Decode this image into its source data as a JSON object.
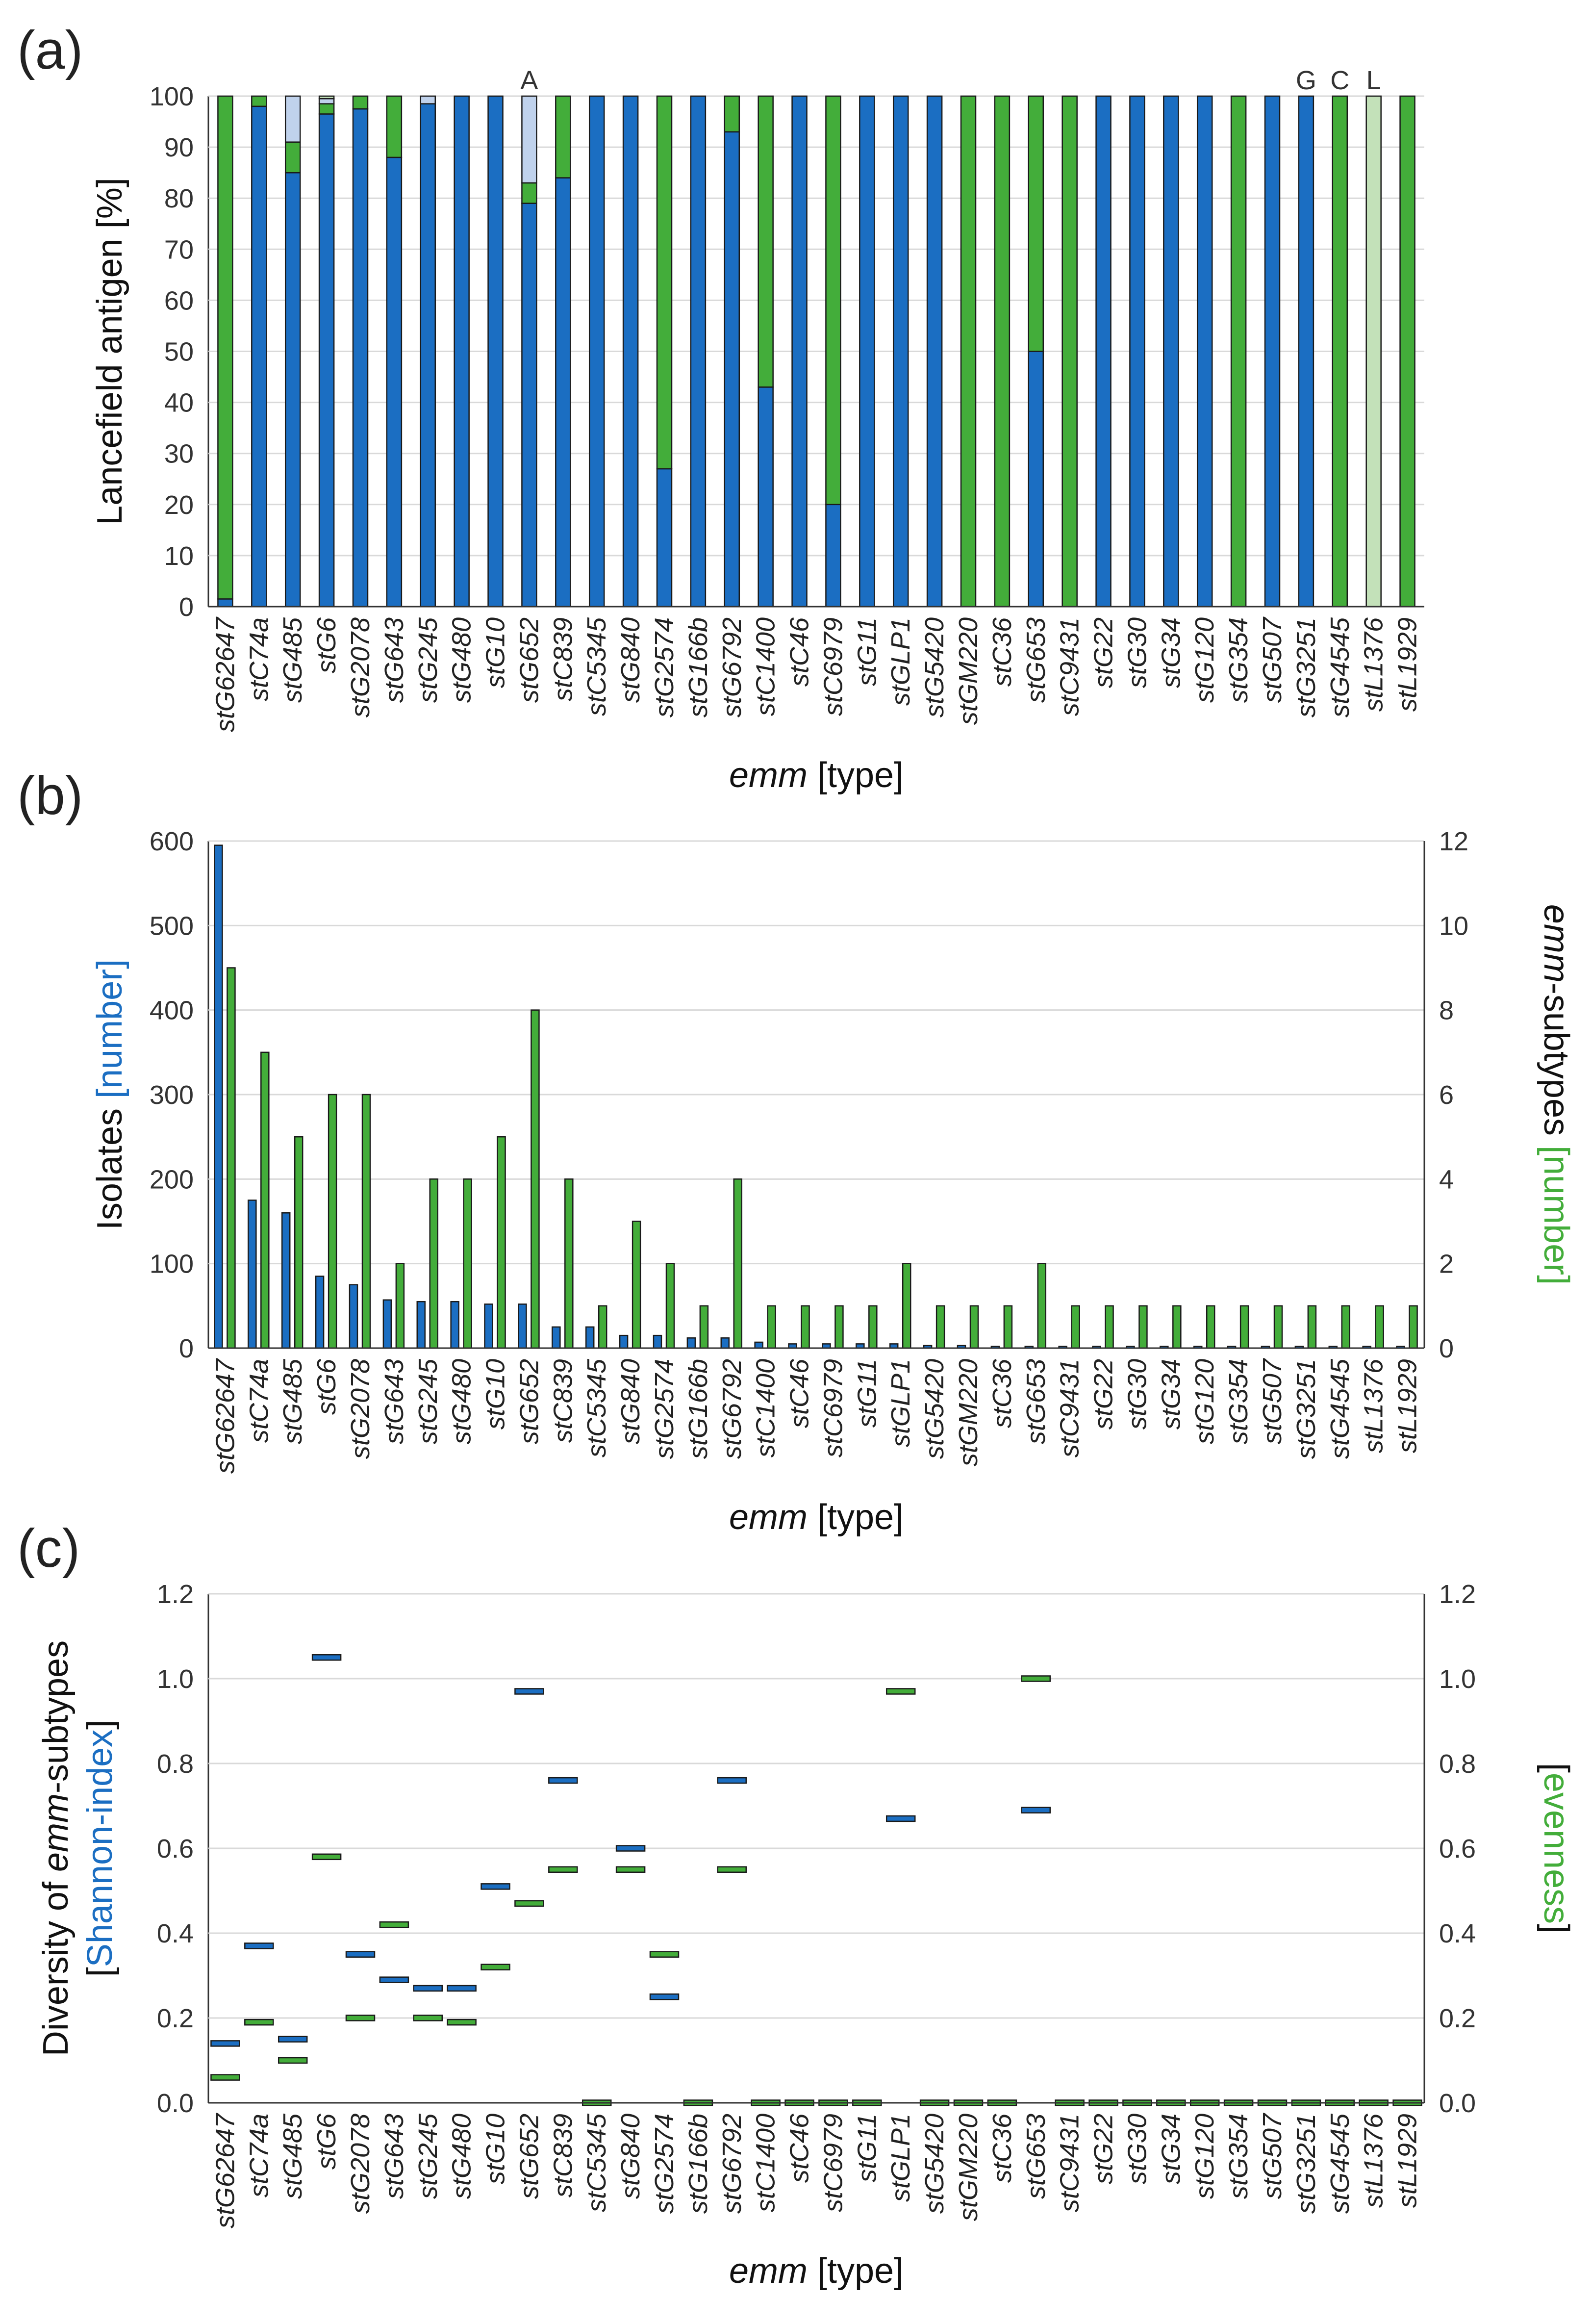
{
  "colors": {
    "blue": "#1b6ec2",
    "green": "#43ad3a",
    "lightblue": "#c0d2ec",
    "lightgreen": "#c3e1b9",
    "red": "#e8141b",
    "bluelabel": "#1b6ec2"
  },
  "chart_data": [
    {
      "id": "a",
      "panel_label": "(a)",
      "type": "bar",
      "stacked": true,
      "xlabel_italic": "emm",
      "xlabel_rest": " [type]",
      "ylabel": "Lancefield antigen [%]",
      "ylim": [
        0,
        100
      ],
      "yticks": [
        0,
        10,
        20,
        30,
        40,
        50,
        60,
        70,
        80,
        90,
        100
      ],
      "categories": [
        "stG62647",
        "stC74a",
        "stG485",
        "stG6",
        "stG2078",
        "stG643",
        "stG245",
        "stG480",
        "stG10",
        "stG652",
        "stC839",
        "stC5345",
        "stG840",
        "stG2574",
        "stG166b",
        "stG6792",
        "stC1400",
        "stC46",
        "stC6979",
        "stG11",
        "stGLP1",
        "stG5420",
        "stGM220",
        "stC36",
        "stG653",
        "stC9431",
        "stG22",
        "stG30",
        "stG34",
        "stG120",
        "stG354",
        "stG507",
        "stG3251",
        "stG4545",
        "stL1376",
        "stL1929"
      ],
      "highlight_category": "stG62647",
      "series": [
        {
          "name": "G",
          "values": [
            1.5,
            98,
            85,
            96.5,
            97.5,
            88,
            98.5,
            100,
            100,
            79,
            84,
            100,
            100,
            27,
            100,
            93,
            43,
            100,
            20,
            100,
            100,
            100,
            0,
            0,
            50,
            0,
            100,
            100,
            100,
            100,
            0,
            100,
            100,
            0,
            0,
            0
          ]
        },
        {
          "name": "C",
          "values": [
            98.5,
            2,
            6,
            2,
            2.5,
            12,
            0,
            0,
            0,
            4,
            16,
            0,
            0,
            73,
            0,
            7,
            57,
            0,
            80,
            0,
            0,
            0,
            100,
            100,
            50,
            100,
            0,
            0,
            0,
            0,
            100,
            0,
            0,
            100,
            0,
            100
          ]
        },
        {
          "name": "A",
          "values": [
            0,
            0,
            9,
            1,
            0,
            0,
            1.5,
            0,
            0,
            17,
            0,
            0,
            0,
            0,
            0,
            0,
            0,
            0,
            0,
            0,
            0,
            0,
            0,
            0,
            0,
            0,
            0,
            0,
            0,
            0,
            0,
            0,
            0,
            0,
            0,
            0
          ]
        },
        {
          "name": "L",
          "values": [
            0,
            0,
            0,
            0.5,
            0,
            0,
            0,
            0,
            0,
            0,
            0,
            0,
            0,
            0,
            0,
            0,
            0,
            0,
            0,
            0,
            0,
            0,
            0,
            0,
            0,
            0,
            0,
            0,
            0,
            0,
            0,
            0,
            0,
            0,
            100,
            0
          ]
        }
      ],
      "annotations": [
        {
          "text": "A",
          "category": "stG652"
        },
        {
          "text": "G",
          "category": "stG3251"
        },
        {
          "text": "C",
          "category": "stG4545"
        },
        {
          "text": "L",
          "category": "stL1376"
        }
      ]
    },
    {
      "id": "b",
      "panel_label": "(b)",
      "type": "bar",
      "xlabel_italic": "emm",
      "xlabel_rest": " [type]",
      "ylabel_left_main": "Isolates ",
      "ylabel_left_colored": "[number]",
      "ylabel_right_italic": "emm",
      "ylabel_right_main": "-subtypes ",
      "ylabel_right_colored": "[number]",
      "ylim_left": [
        0,
        600
      ],
      "yticks_left": [
        0,
        100,
        200,
        300,
        400,
        500,
        600
      ],
      "ylim_right": [
        0,
        12
      ],
      "yticks_right": [
        0,
        2,
        4,
        6,
        8,
        10,
        12
      ],
      "series": [
        {
          "name": "Isolates",
          "axis": "left",
          "values": [
            595,
            175,
            160,
            85,
            75,
            57,
            55,
            55,
            52,
            52,
            25,
            25,
            15,
            15,
            12,
            12,
            7,
            5,
            5,
            5,
            5,
            3,
            3,
            2,
            2,
            2,
            2,
            2,
            2,
            2,
            2,
            2,
            2,
            2,
            2,
            2
          ]
        },
        {
          "name": "emm-subtypes",
          "axis": "right",
          "values": [
            9,
            7,
            5,
            6,
            6,
            2,
            4,
            4,
            5,
            8,
            4,
            1,
            3,
            2,
            1,
            4,
            1,
            1,
            1,
            1,
            2,
            1,
            1,
            1,
            2,
            1,
            1,
            1,
            1,
            1,
            1,
            1,
            1,
            1,
            1,
            1
          ]
        }
      ]
    },
    {
      "id": "c",
      "panel_label": "(c)",
      "type": "scatter",
      "marker": "dash",
      "xlabel_italic": "emm",
      "xlabel_rest": " [type]",
      "ylabel_line1_a": "Diversity of ",
      "ylabel_line1_italic": "emm",
      "ylabel_line1_b": "-subtypes",
      "ylabel_line2_open": "[",
      "ylabel_line2_colored": "Shannon-index",
      "ylabel_line2_close": "]",
      "ylabel_right_open": "[",
      "ylabel_right_colored": "evenness",
      "ylabel_right_close": "]",
      "ylim_left": [
        0,
        1.2
      ],
      "yticks_left": [
        "0.0",
        "0.2",
        "0.4",
        "0.6",
        "0.8",
        "1.0",
        "1.2"
      ],
      "ylim_right": [
        0,
        1.2
      ],
      "yticks_right": [
        "0.0",
        "0.2",
        "0.4",
        "0.6",
        "0.8",
        "1.0",
        "1.2"
      ],
      "series": [
        {
          "name": "Shannon-index",
          "axis": "left",
          "values": [
            0.14,
            0.37,
            0.15,
            1.05,
            0.35,
            0.29,
            0.27,
            0.27,
            0.51,
            0.97,
            0.76,
            null,
            0.6,
            0.25,
            null,
            0.76,
            null,
            null,
            null,
            null,
            0.67,
            null,
            null,
            null,
            0.69,
            null,
            null,
            null,
            null,
            null,
            null,
            null,
            null,
            null,
            null,
            null
          ]
        },
        {
          "name": "evenness",
          "axis": "right",
          "values": [
            0.06,
            0.19,
            0.1,
            0.58,
            0.2,
            0.42,
            0.2,
            0.19,
            0.32,
            0.47,
            0.55,
            0,
            0.55,
            0.35,
            0,
            0.55,
            0,
            0,
            0,
            0,
            0.97,
            0,
            0,
            0,
            1.0,
            0,
            0,
            0,
            0,
            0,
            0,
            0,
            0,
            0,
            0,
            0
          ]
        }
      ]
    }
  ]
}
